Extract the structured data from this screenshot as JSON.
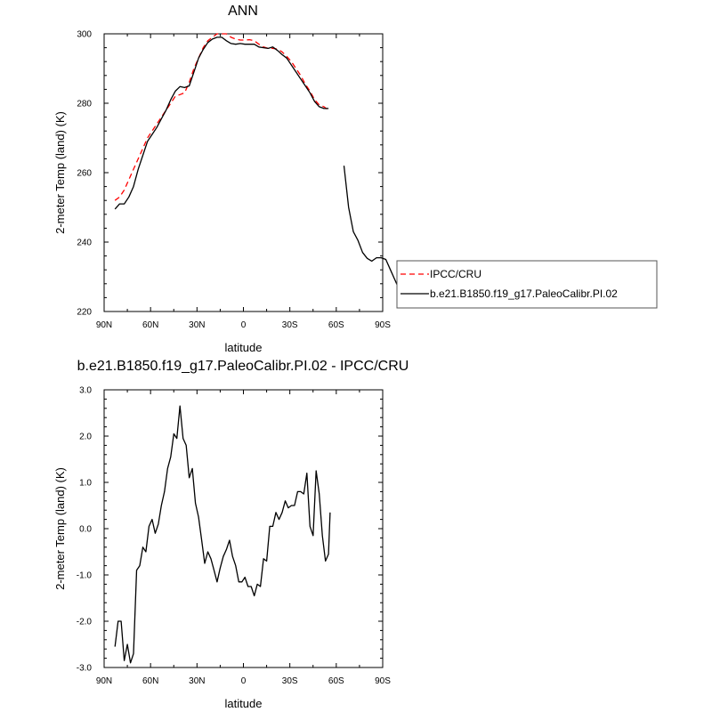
{
  "chart_data": [
    {
      "type": "line",
      "title": "ANN",
      "xlabel": "latitude",
      "ylabel": "2-meter Temp (land) (K)",
      "xlim": [
        90,
        -90
      ],
      "ylim": [
        220,
        300
      ],
      "x_ticks": [
        90,
        60,
        30,
        0,
        -30,
        -60,
        -90
      ],
      "x_tick_labels": [
        "90N",
        "60N",
        "30N",
        "0",
        "30S",
        "60S",
        "90S"
      ],
      "y_ticks": [
        220,
        240,
        260,
        280,
        300
      ],
      "y_tick_labels": [
        "220",
        "240",
        "260",
        "280",
        "300"
      ],
      "legend": {
        "position": "right",
        "entries": [
          "IPCC/CRU",
          "b.e21.B1850.f19_g17.PaleoCalibr.PI.02"
        ]
      },
      "series": [
        {
          "name": "IPCC/CRU",
          "color": "#ff0000",
          "dash": "dashed",
          "segments": [
            [
              [
                83,
                252
              ],
              [
                80,
                253
              ],
              [
                77,
                255
              ],
              [
                74,
                258
              ],
              [
                71,
                261
              ],
              [
                68,
                264
              ],
              [
                65,
                267
              ],
              [
                62,
                270
              ],
              [
                59,
                272
              ],
              [
                56,
                274
              ],
              [
                53,
                276
              ],
              [
                50,
                278
              ],
              [
                47,
                280
              ],
              [
                44,
                282
              ],
              [
                41,
                282.5
              ],
              [
                38,
                283
              ],
              [
                35,
                286
              ],
              [
                32,
                290
              ],
              [
                29,
                293
              ],
              [
                26,
                296
              ],
              [
                23,
                298
              ],
              [
                20,
                299
              ],
              [
                17,
                300
              ],
              [
                14,
                300
              ],
              [
                11,
                300
              ],
              [
                8,
                299
              ],
              [
                5,
                298.5
              ],
              [
                2,
                298.2
              ],
              [
                -1,
                298.2
              ],
              [
                -4,
                298.3
              ],
              [
                -7,
                298
              ],
              [
                -10,
                297
              ],
              [
                -13,
                296.2
              ],
              [
                -16,
                295.8
              ],
              [
                -19,
                295.8
              ],
              [
                -22,
                295.6
              ],
              [
                -25,
                294.8
              ],
              [
                -28,
                293.5
              ],
              [
                -31,
                292
              ],
              [
                -34,
                290
              ],
              [
                -37,
                288
              ],
              [
                -40,
                285.5
              ],
              [
                -43,
                283.5
              ],
              [
                -46,
                281
              ],
              [
                -49,
                279.5
              ],
              [
                -52,
                279
              ],
              [
                -55,
                278
              ]
            ]
          ]
        },
        {
          "name": "b.e21.B1850.f19_g17.PaleoCalibr.PI.02",
          "color": "#000000",
          "dash": "solid",
          "segments": [
            [
              [
                83,
                249.5
              ],
              [
                80,
                251
              ],
              [
                77,
                251
              ],
              [
                74,
                253
              ],
              [
                71,
                256
              ],
              [
                68,
                261
              ],
              [
                65,
                265
              ],
              [
                62,
                269
              ],
              [
                59,
                271
              ],
              [
                56,
                273
              ],
              [
                53,
                275.5
              ],
              [
                50,
                278
              ],
              [
                47,
                281
              ],
              [
                44,
                283.5
              ],
              [
                41,
                284.8
              ],
              [
                38,
                284.5
              ],
              [
                35,
                285
              ],
              [
                32,
                289
              ],
              [
                29,
                293
              ],
              [
                26,
                295.5
              ],
              [
                23,
                297.5
              ],
              [
                20,
                298.5
              ],
              [
                17,
                299
              ],
              [
                14,
                299
              ],
              [
                11,
                298
              ],
              [
                8,
                297.2
              ],
              [
                5,
                297
              ],
              [
                2,
                297.2
              ],
              [
                -1,
                297
              ],
              [
                -4,
                297
              ],
              [
                -7,
                297
              ],
              [
                -10,
                296.2
              ],
              [
                -13,
                296
              ],
              [
                -16,
                295.8
              ],
              [
                -19,
                296.2
              ],
              [
                -22,
                295.2
              ],
              [
                -25,
                294
              ],
              [
                -28,
                293
              ],
              [
                -31,
                291
              ],
              [
                -34,
                289
              ],
              [
                -37,
                287
              ],
              [
                -40,
                285
              ],
              [
                -43,
                283
              ],
              [
                -46,
                280.5
              ],
              [
                -49,
                279
              ],
              [
                -52,
                278.5
              ],
              [
                -55,
                278.5
              ]
            ],
            [
              [
                -65,
                262
              ],
              [
                -68,
                250
              ],
              [
                -71,
                243
              ],
              [
                -74,
                240.5
              ],
              [
                -77,
                237
              ],
              [
                -80,
                235.3
              ],
              [
                -83,
                234.5
              ],
              [
                -86,
                235.5
              ],
              [
                -89,
                235.5
              ],
              [
                -92,
                235
              ],
              [
                -95,
                232
              ],
              [
                -98,
                229
              ],
              [
                -101,
                226
              ],
              [
                -103,
                225.5
              ]
            ]
          ]
        }
      ]
    },
    {
      "type": "line",
      "title": "b.e21.B1850.f19_g17.PaleoCalibr.PI.02 - IPCC/CRU",
      "xlabel": "latitude",
      "ylabel": "2-meter Temp (land) (K)",
      "xlim": [
        90,
        -90
      ],
      "ylim": [
        -3.0,
        3.0
      ],
      "x_ticks": [
        90,
        60,
        30,
        0,
        -30,
        -60,
        -90
      ],
      "x_tick_labels": [
        "90N",
        "60N",
        "30N",
        "0",
        "30S",
        "60S",
        "90S"
      ],
      "y_ticks": [
        -3,
        -2,
        -1,
        0,
        1,
        2,
        3
      ],
      "y_tick_labels": [
        "-3.0",
        "-2.0",
        "-1.0",
        "0.0",
        "1.0",
        "2.0",
        "3.0"
      ],
      "series": [
        {
          "color": "#000000",
          "dash": "solid",
          "segments": [
            [
              [
                83,
                -2.55
              ],
              [
                81,
                -2.0
              ],
              [
                79,
                -2.0
              ],
              [
                77,
                -2.85
              ],
              [
                75,
                -2.5
              ],
              [
                73,
                -2.9
              ],
              [
                71,
                -2.7
              ],
              [
                69,
                -0.9
              ],
              [
                67,
                -0.8
              ],
              [
                65,
                -0.4
              ],
              [
                63,
                -0.5
              ],
              [
                61,
                0.05
              ],
              [
                59,
                0.2
              ],
              [
                57,
                -0.1
              ],
              [
                55,
                0.1
              ],
              [
                53,
                0.5
              ],
              [
                51,
                0.8
              ],
              [
                49,
                1.3
              ],
              [
                47,
                1.55
              ],
              [
                45,
                2.05
              ],
              [
                43,
                1.95
              ],
              [
                41,
                2.65
              ],
              [
                39,
                1.95
              ],
              [
                37,
                1.8
              ],
              [
                35,
                1.1
              ],
              [
                33,
                1.3
              ],
              [
                31,
                0.55
              ],
              [
                29,
                0.25
              ],
              [
                27,
                -0.25
              ],
              [
                25,
                -0.75
              ],
              [
                23,
                -0.5
              ],
              [
                21,
                -0.65
              ],
              [
                19,
                -0.9
              ],
              [
                17,
                -1.15
              ],
              [
                15,
                -0.85
              ],
              [
                13,
                -0.6
              ],
              [
                11,
                -0.45
              ],
              [
                9,
                -0.25
              ],
              [
                7,
                -0.6
              ],
              [
                5,
                -0.8
              ],
              [
                3,
                -1.15
              ],
              [
                1,
                -1.15
              ],
              [
                -1,
                -1.05
              ],
              [
                -3,
                -1.25
              ],
              [
                -5,
                -1.25
              ],
              [
                -7,
                -1.45
              ],
              [
                -9,
                -1.2
              ],
              [
                -11,
                -1.25
              ],
              [
                -13,
                -0.65
              ],
              [
                -15,
                -0.7
              ],
              [
                -17,
                0.05
              ],
              [
                -19,
                0.05
              ],
              [
                -21,
                0.35
              ],
              [
                -23,
                0.2
              ],
              [
                -25,
                0.35
              ],
              [
                -27,
                0.6
              ],
              [
                -29,
                0.45
              ],
              [
                -31,
                0.5
              ],
              [
                -33,
                0.5
              ],
              [
                -35,
                0.8
              ],
              [
                -37,
                0.8
              ],
              [
                -39,
                0.75
              ],
              [
                -41,
                1.2
              ],
              [
                -43,
                0.05
              ],
              [
                -45,
                -0.15
              ],
              [
                -47,
                1.25
              ],
              [
                -49,
                0.75
              ],
              [
                -51,
                -0.15
              ],
              [
                -53,
                -0.7
              ],
              [
                -55,
                -0.55
              ],
              [
                -56,
                0.35
              ]
            ]
          ]
        }
      ]
    }
  ]
}
